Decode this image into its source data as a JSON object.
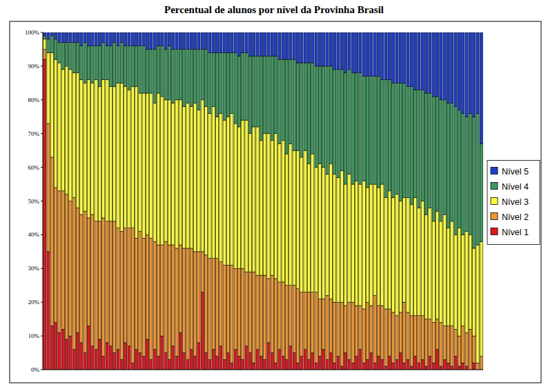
{
  "chart_data": {
    "type": "bar",
    "title": "Percentual de alunos por nível da Provinha Brasil",
    "stacked": true,
    "grid": false,
    "legend": "right",
    "tick_labels": "y",
    "ylim": [
      0,
      100
    ],
    "yticks": [
      {
        "value": 0,
        "label": "0%"
      },
      {
        "value": 10,
        "label": "10%"
      },
      {
        "value": 20,
        "label": "20%"
      },
      {
        "value": 30,
        "label": "30%"
      },
      {
        "value": 40,
        "label": "40%"
      },
      {
        "value": 50,
        "label": "50%"
      },
      {
        "value": 60,
        "label": "60%"
      },
      {
        "value": 70,
        "label": "70%"
      },
      {
        "value": 80,
        "label": "80%"
      },
      {
        "value": 90,
        "label": "90%"
      },
      {
        "value": 100,
        "label": "100%"
      }
    ],
    "categories": [
      null,
      null,
      null,
      null,
      null,
      null,
      null,
      null,
      null,
      null,
      null,
      null,
      null,
      null,
      null,
      null,
      null,
      null,
      null,
      null,
      null,
      null,
      null,
      null,
      null,
      null,
      null,
      null,
      null,
      null,
      null,
      null,
      null,
      null,
      null,
      null,
      null,
      null,
      null,
      null,
      null,
      null,
      null,
      null,
      null,
      null,
      null,
      null,
      null,
      null,
      null,
      null,
      null,
      null,
      null,
      null,
      null,
      null,
      null,
      null,
      null,
      null,
      null,
      null,
      null,
      null,
      null,
      null,
      null,
      null,
      null,
      null,
      null,
      null,
      null,
      null,
      null,
      null,
      null,
      null,
      null,
      null,
      null,
      null,
      null,
      null,
      null,
      null,
      null,
      null,
      null,
      null,
      null,
      null,
      null,
      null,
      null,
      null,
      null,
      null,
      null,
      null,
      null,
      null,
      null,
      null,
      null,
      null,
      null,
      null,
      null,
      null,
      null,
      null,
      null,
      null,
      null,
      null,
      null,
      null
    ],
    "series": [
      {
        "name": "Nível 1",
        "color": "#e8141c",
        "values": [
          92,
          35,
          13,
          14,
          11,
          12,
          9,
          10,
          6,
          11,
          8,
          5,
          13,
          7,
          6,
          9,
          4,
          8,
          7,
          5,
          6,
          3,
          8,
          7,
          2,
          6,
          5,
          4,
          9,
          3,
          6,
          4,
          10,
          5,
          3,
          7,
          4,
          11,
          5,
          3,
          6,
          4,
          8,
          23,
          5,
          3,
          6,
          4,
          7,
          3,
          5,
          2,
          6,
          4,
          3,
          7,
          5,
          2,
          6,
          4,
          3,
          8,
          5,
          2,
          6,
          4,
          3,
          7,
          5,
          2,
          4,
          6,
          3,
          5,
          2,
          4,
          6,
          3,
          5,
          2,
          4,
          1,
          5,
          3,
          2,
          4,
          6,
          2,
          3,
          5,
          2,
          4,
          3,
          1,
          4,
          2,
          3,
          5,
          2,
          3,
          1,
          4,
          2,
          3,
          1,
          4,
          2,
          6,
          1,
          3,
          2,
          1,
          4,
          1,
          2,
          1,
          0,
          2,
          0,
          0
        ]
      },
      {
        "name": "Nível 2",
        "color": "#f0962c",
        "values": [
          3,
          38,
          50,
          40,
          42,
          41,
          43,
          40,
          45,
          37,
          38,
          42,
          32,
          39,
          38,
          35,
          41,
          36,
          37,
          39,
          36,
          38,
          34,
          35,
          40,
          33,
          36,
          35,
          31,
          36,
          32,
          33,
          27,
          33,
          34,
          30,
          32,
          26,
          31,
          33,
          30,
          31,
          27,
          12,
          29,
          30,
          27,
          29,
          25,
          28,
          26,
          29,
          24,
          26,
          27,
          22,
          24,
          27,
          22,
          24,
          25,
          19,
          23,
          25,
          20,
          22,
          22,
          18,
          20,
          22,
          19,
          17,
          20,
          18,
          21,
          17,
          15,
          19,
          16,
          18,
          16,
          19,
          14,
          17,
          18,
          15,
          13,
          16,
          17,
          14,
          20,
          15,
          16,
          17,
          14,
          15,
          13,
          12,
          18,
          14,
          15,
          12,
          14,
          13,
          14,
          11,
          12,
          9,
          13,
          10,
          11,
          12,
          8,
          9,
          11,
          10,
          12,
          8,
          2,
          4
        ]
      },
      {
        "name": "Nível 3",
        "color": "#ffff33",
        "values": [
          3,
          21,
          31,
          38,
          38,
          36,
          38,
          39,
          37,
          40,
          40,
          38,
          41,
          39,
          42,
          40,
          41,
          42,
          40,
          40,
          43,
          44,
          42,
          41,
          42,
          45,
          41,
          43,
          42,
          43,
          41,
          45,
          44,
          42,
          43,
          42,
          44,
          43,
          42,
          43,
          42,
          44,
          42,
          45,
          44,
          43,
          45,
          42,
          44,
          43,
          44,
          45,
          43,
          42,
          44,
          45,
          41,
          43,
          44,
          40,
          42,
          43,
          40,
          43,
          41,
          42,
          39,
          42,
          40,
          41,
          40,
          42,
          38,
          41,
          37,
          40,
          39,
          36,
          40,
          38,
          37,
          39,
          36,
          38,
          35,
          37,
          36,
          38,
          34,
          36,
          33,
          35,
          36,
          33,
          35,
          34,
          36,
          33,
          31,
          34,
          33,
          35,
          32,
          34,
          31,
          33,
          30,
          32,
          30,
          33,
          29,
          31,
          28,
          32,
          27,
          30,
          28,
          26,
          35,
          34
        ]
      },
      {
        "name": "Nível 4",
        "color": "#3a9a5c",
        "values": [
          1,
          4,
          5,
          6,
          6,
          8,
          7,
          8,
          9,
          9,
          10,
          12,
          10,
          11,
          10,
          12,
          11,
          10,
          12,
          13,
          11,
          12,
          12,
          13,
          12,
          12,
          14,
          14,
          13,
          13,
          16,
          14,
          15,
          15,
          16,
          16,
          15,
          15,
          17,
          16,
          17,
          16,
          18,
          15,
          17,
          18,
          16,
          19,
          18,
          20,
          19,
          18,
          21,
          21,
          20,
          20,
          23,
          21,
          21,
          25,
          23,
          23,
          25,
          23,
          25,
          24,
          28,
          25,
          27,
          26,
          28,
          26,
          30,
          27,
          30,
          29,
          30,
          32,
          29,
          31,
          32,
          30,
          33,
          31,
          33,
          32,
          33,
          31,
          33,
          32,
          32,
          33,
          31,
          35,
          33,
          34,
          33,
          35,
          34,
          33,
          35,
          32,
          35,
          33,
          36,
          34,
          37,
          34,
          36,
          34,
          37,
          35,
          38,
          35,
          36,
          34,
          36,
          39,
          39,
          29
        ]
      },
      {
        "name": "Nível 5",
        "color": "#1c3ed0",
        "values": [
          1,
          2,
          1,
          2,
          3,
          3,
          3,
          3,
          3,
          3,
          4,
          3,
          4,
          4,
          4,
          4,
          3,
          4,
          4,
          3,
          4,
          3,
          4,
          4,
          4,
          4,
          4,
          4,
          5,
          5,
          5,
          4,
          4,
          5,
          4,
          5,
          5,
          5,
          5,
          5,
          5,
          5,
          5,
          5,
          5,
          6,
          6,
          6,
          6,
          6,
          6,
          6,
          6,
          7,
          6,
          6,
          7,
          7,
          7,
          7,
          7,
          7,
          7,
          7,
          8,
          8,
          8,
          8,
          8,
          9,
          9,
          9,
          9,
          9,
          10,
          10,
          10,
          10,
          10,
          11,
          11,
          11,
          12,
          11,
          12,
          12,
          12,
          13,
          13,
          13,
          13,
          13,
          14,
          14,
          14,
          15,
          15,
          15,
          15,
          16,
          16,
          17,
          17,
          17,
          18,
          18,
          19,
          19,
          20,
          20,
          21,
          21,
          22,
          23,
          24,
          25,
          24,
          25,
          24,
          33
        ]
      }
    ]
  }
}
